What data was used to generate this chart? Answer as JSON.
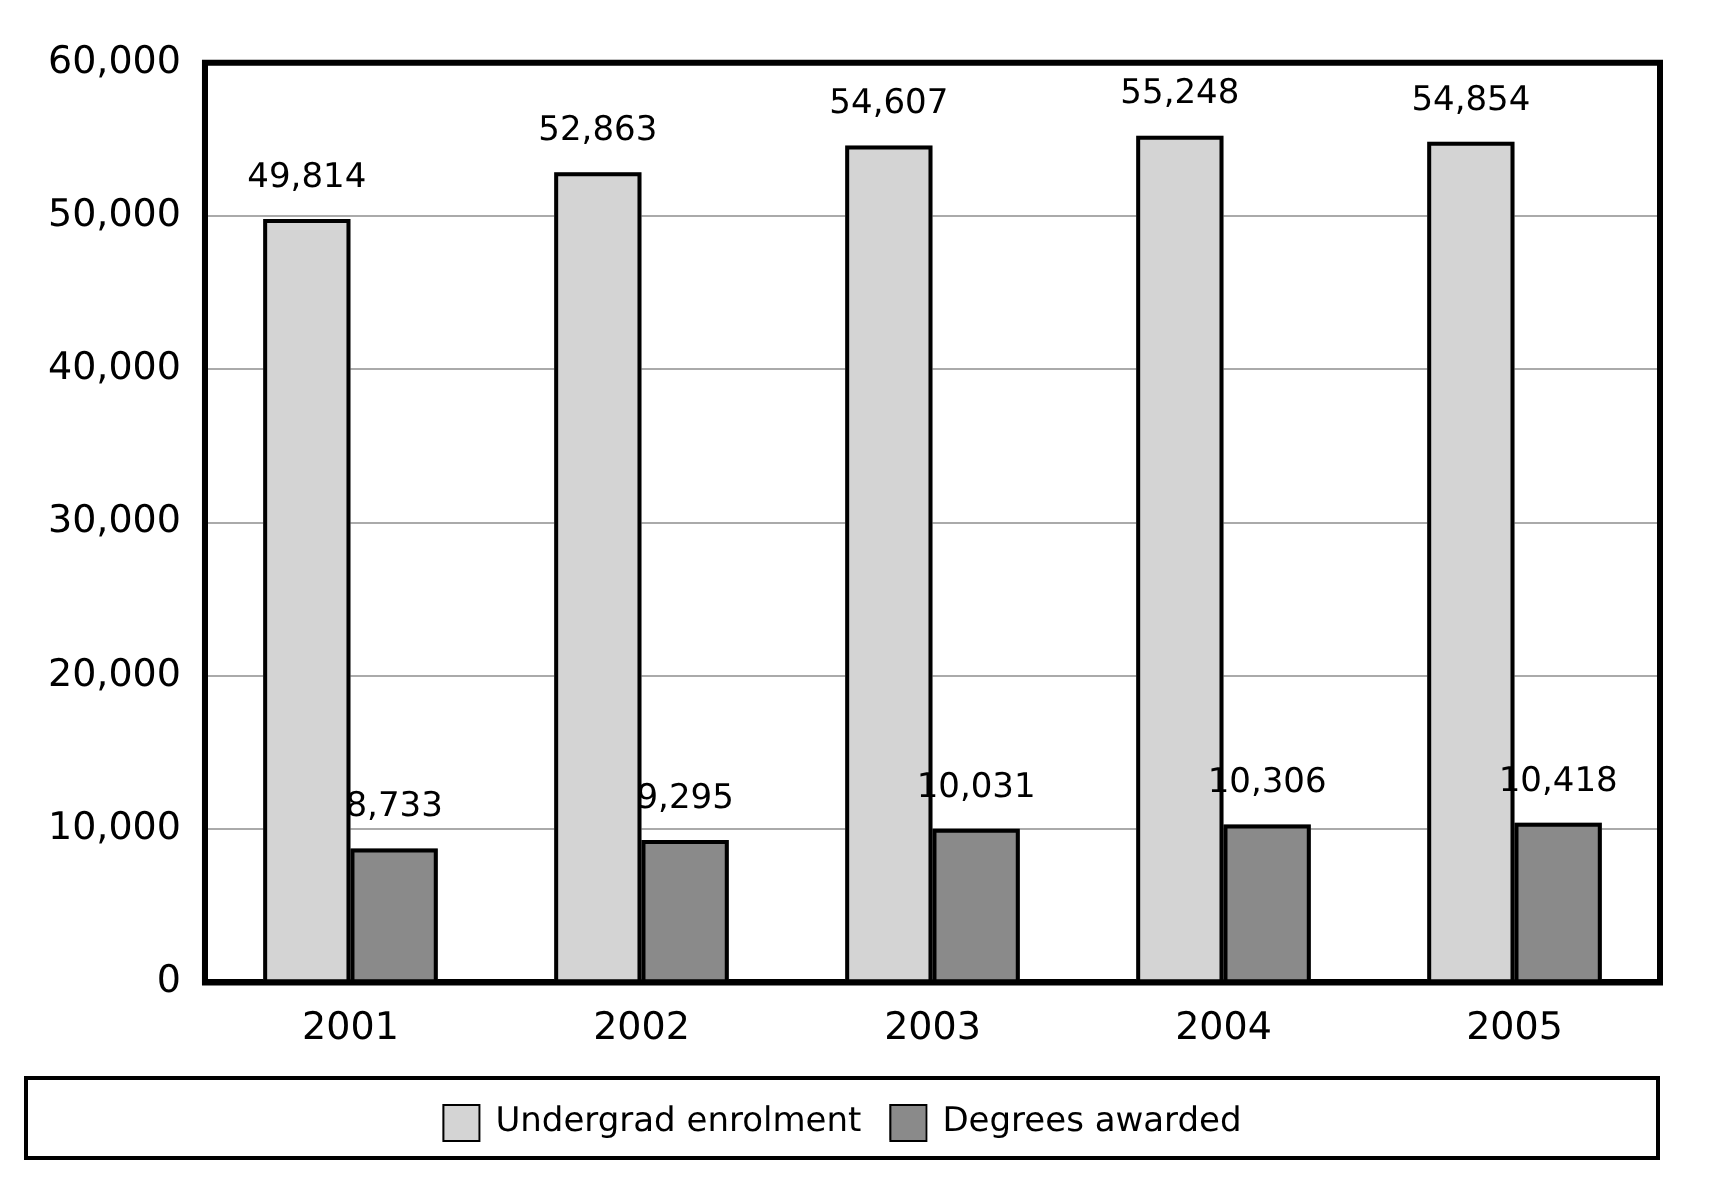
{
  "chart_data": {
    "type": "bar",
    "categories": [
      "2001",
      "2002",
      "2003",
      "2004",
      "2005"
    ],
    "series": [
      {
        "name": "Undergrad enrolment",
        "color": "#d4d4d4",
        "values": [
          49814,
          52863,
          54607,
          55248,
          54854
        ],
        "value_labels": [
          "49,814",
          "52,863",
          "54,607",
          "55,248",
          "54,854"
        ]
      },
      {
        "name": "Degrees awarded",
        "color": "#8a8a8a",
        "values": [
          8733,
          9295,
          10031,
          10306,
          10418
        ],
        "value_labels": [
          "8,733",
          "9,295",
          "10,031",
          "10,306",
          "10,418"
        ]
      }
    ],
    "ylim": [
      0,
      60000
    ],
    "yticks": [
      {
        "value": 0,
        "label": "0"
      },
      {
        "value": 10000,
        "label": "10,000"
      },
      {
        "value": 20000,
        "label": "20,000"
      },
      {
        "value": 30000,
        "label": "30,000"
      },
      {
        "value": 40000,
        "label": "40,000"
      },
      {
        "value": 50000,
        "label": "50,000"
      },
      {
        "value": 60000,
        "label": "60,000"
      }
    ],
    "grid": "y",
    "legend": "bottom"
  }
}
